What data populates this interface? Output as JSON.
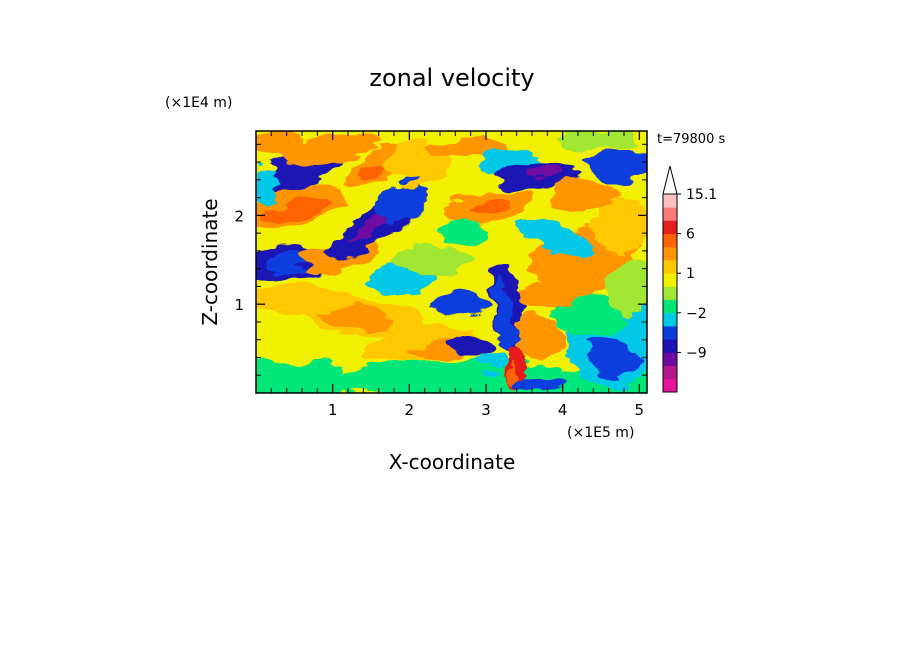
{
  "chart_data": {
    "type": "heatmap",
    "title": "zonal velocity",
    "xlabel": "X-coordinate",
    "ylabel": "Z-coordinate",
    "x_unit": "(×1E5 m)",
    "y_unit": "(×1E4 m)",
    "time_label": "t=79800 s",
    "xlim": [
      0,
      5.1
    ],
    "ylim": [
      0,
      2.95
    ],
    "x_ticks": [
      "1",
      "2",
      "3",
      "4",
      "5"
    ],
    "x_tick_values": [
      1,
      2,
      3,
      4,
      5
    ],
    "y_ticks": [
      "1",
      "2"
    ],
    "y_tick_values": [
      1,
      2
    ],
    "colorbar": {
      "levels": [
        -15,
        -12,
        -9,
        -6,
        -4,
        -2,
        -1,
        0,
        1,
        2,
        3,
        6,
        9,
        12,
        15.1
      ],
      "labels": [
        {
          "value": 15.1,
          "text": "15.1"
        },
        {
          "value": 6,
          "text": "6"
        },
        {
          "value": 1,
          "text": "1"
        },
        {
          "value": -2,
          "text": "−2"
        },
        {
          "value": -9,
          "text": "−9"
        }
      ],
      "colors": [
        "#e8149c",
        "#b4148c",
        "#6e0aa0",
        "#1e14b4",
        "#0a3cdc",
        "#00c8e6",
        "#00e678",
        "#a0e632",
        "#f0f000",
        "#ffc800",
        "#ff9600",
        "#ff6400",
        "#e61e1e",
        "#ff7a7a",
        "#ffc0c0"
      ],
      "extend_top": true
    }
  }
}
